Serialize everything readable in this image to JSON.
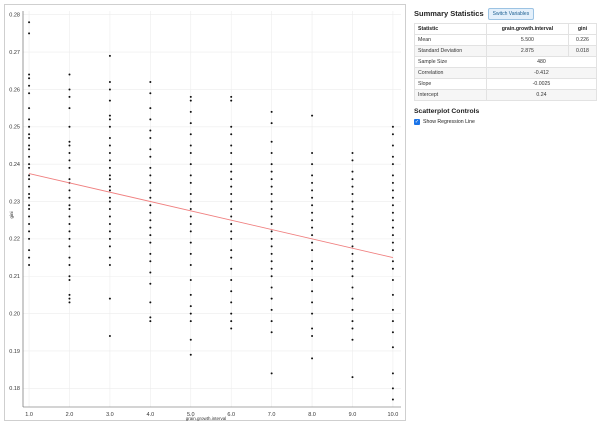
{
  "summary": {
    "title": "Summary Statistics",
    "switch_label": "Switch Variables",
    "columns": [
      "Statistic",
      "grain.growth.interval",
      "gini"
    ],
    "rows": [
      {
        "name": "Mean",
        "values": [
          "5.500",
          "0.226"
        ]
      },
      {
        "name": "Standard Deviation",
        "values": [
          "2.875",
          "0.018"
        ]
      },
      {
        "name": "Sample Size",
        "values": [
          "480"
        ]
      },
      {
        "name": "Correlation",
        "values": [
          "-0.412"
        ]
      },
      {
        "name": "Slope",
        "values": [
          "-0.0025"
        ]
      },
      {
        "name": "Intercept",
        "values": [
          "0.24"
        ]
      }
    ]
  },
  "controls": {
    "title": "Scatterplot Controls",
    "show_regression_label": "Show Regression Line",
    "show_regression_checked": true
  },
  "colors": {
    "points": "#111111",
    "regression": "#f08080",
    "checkbox": "#1a73e8"
  },
  "chart_data": {
    "type": "scatter",
    "xlabel": "grain.growth.interval",
    "ylabel": "gini",
    "x_ticks": [
      "1.0",
      "2.0",
      "3.0",
      "4.0",
      "5.0",
      "6.0",
      "7.0",
      "8.0",
      "9.0",
      "10.0"
    ],
    "y_ticks": [
      "0.18",
      "0.19",
      "0.20",
      "0.21",
      "0.22",
      "0.23",
      "0.24",
      "0.25",
      "0.26",
      "0.27",
      "0.28"
    ],
    "xlim": [
      0.85,
      10.2
    ],
    "ylim": [
      0.175,
      0.281
    ],
    "grid": true,
    "regression": {
      "intercept": 0.24,
      "slope": -0.0025
    },
    "points": [
      [
        1,
        0.278
      ],
      [
        1,
        0.275
      ],
      [
        1,
        0.264
      ],
      [
        1,
        0.263
      ],
      [
        1,
        0.261
      ],
      [
        1,
        0.259
      ],
      [
        1,
        0.255
      ],
      [
        1,
        0.252
      ],
      [
        1,
        0.25
      ],
      [
        1,
        0.248
      ],
      [
        1,
        0.247
      ],
      [
        1,
        0.245
      ],
      [
        1,
        0.244
      ],
      [
        1,
        0.242
      ],
      [
        1,
        0.24
      ],
      [
        1,
        0.239
      ],
      [
        1,
        0.237
      ],
      [
        1,
        0.236
      ],
      [
        1,
        0.234
      ],
      [
        1,
        0.232
      ],
      [
        1,
        0.231
      ],
      [
        1,
        0.229
      ],
      [
        1,
        0.228
      ],
      [
        1,
        0.226
      ],
      [
        1,
        0.224
      ],
      [
        1,
        0.222
      ],
      [
        1,
        0.22
      ],
      [
        1,
        0.217
      ],
      [
        1,
        0.215
      ],
      [
        1,
        0.213
      ],
      [
        2,
        0.264
      ],
      [
        2,
        0.26
      ],
      [
        2,
        0.258
      ],
      [
        2,
        0.255
      ],
      [
        2,
        0.25
      ],
      [
        2,
        0.246
      ],
      [
        2,
        0.245
      ],
      [
        2,
        0.243
      ],
      [
        2,
        0.241
      ],
      [
        2,
        0.239
      ],
      [
        2,
        0.236
      ],
      [
        2,
        0.235
      ],
      [
        2,
        0.233
      ],
      [
        2,
        0.231
      ],
      [
        2,
        0.229
      ],
      [
        2,
        0.228
      ],
      [
        2,
        0.226
      ],
      [
        2,
        0.224
      ],
      [
        2,
        0.222
      ],
      [
        2,
        0.22
      ],
      [
        2,
        0.218
      ],
      [
        2,
        0.215
      ],
      [
        2,
        0.213
      ],
      [
        2,
        0.21
      ],
      [
        2,
        0.209
      ],
      [
        2,
        0.205
      ],
      [
        2,
        0.204
      ],
      [
        2,
        0.203
      ],
      [
        3,
        0.269
      ],
      [
        3,
        0.262
      ],
      [
        3,
        0.26
      ],
      [
        3,
        0.257
      ],
      [
        3,
        0.253
      ],
      [
        3,
        0.252
      ],
      [
        3,
        0.25
      ],
      [
        3,
        0.247
      ],
      [
        3,
        0.245
      ],
      [
        3,
        0.243
      ],
      [
        3,
        0.241
      ],
      [
        3,
        0.239
      ],
      [
        3,
        0.237
      ],
      [
        3,
        0.236
      ],
      [
        3,
        0.234
      ],
      [
        3,
        0.233
      ],
      [
        3,
        0.231
      ],
      [
        3,
        0.23
      ],
      [
        3,
        0.228
      ],
      [
        3,
        0.226
      ],
      [
        3,
        0.224
      ],
      [
        3,
        0.222
      ],
      [
        3,
        0.22
      ],
      [
        3,
        0.218
      ],
      [
        3,
        0.215
      ],
      [
        3,
        0.213
      ],
      [
        3,
        0.204
      ],
      [
        3,
        0.194
      ],
      [
        4,
        0.262
      ],
      [
        4,
        0.259
      ],
      [
        4,
        0.255
      ],
      [
        4,
        0.252
      ],
      [
        4,
        0.249
      ],
      [
        4,
        0.247
      ],
      [
        4,
        0.244
      ],
      [
        4,
        0.242
      ],
      [
        4,
        0.239
      ],
      [
        4,
        0.237
      ],
      [
        4,
        0.235
      ],
      [
        4,
        0.233
      ],
      [
        4,
        0.231
      ],
      [
        4,
        0.229
      ],
      [
        4,
        0.227
      ],
      [
        4,
        0.225
      ],
      [
        4,
        0.223
      ],
      [
        4,
        0.221
      ],
      [
        4,
        0.219
      ],
      [
        4,
        0.216
      ],
      [
        4,
        0.214
      ],
      [
        4,
        0.211
      ],
      [
        4,
        0.208
      ],
      [
        4,
        0.203
      ],
      [
        4,
        0.199
      ],
      [
        4,
        0.198
      ],
      [
        5,
        0.258
      ],
      [
        5,
        0.257
      ],
      [
        5,
        0.254
      ],
      [
        5,
        0.251
      ],
      [
        5,
        0.248
      ],
      [
        5,
        0.245
      ],
      [
        5,
        0.243
      ],
      [
        5,
        0.24
      ],
      [
        5,
        0.237
      ],
      [
        5,
        0.235
      ],
      [
        5,
        0.232
      ],
      [
        5,
        0.23
      ],
      [
        5,
        0.228
      ],
      [
        5,
        0.226
      ],
      [
        5,
        0.224
      ],
      [
        5,
        0.222
      ],
      [
        5,
        0.219
      ],
      [
        5,
        0.216
      ],
      [
        5,
        0.213
      ],
      [
        5,
        0.209
      ],
      [
        5,
        0.205
      ],
      [
        5,
        0.202
      ],
      [
        5,
        0.2
      ],
      [
        5,
        0.198
      ],
      [
        5,
        0.193
      ],
      [
        5,
        0.189
      ],
      [
        6,
        0.258
      ],
      [
        6,
        0.257
      ],
      [
        6,
        0.25
      ],
      [
        6,
        0.248
      ],
      [
        6,
        0.245
      ],
      [
        6,
        0.243
      ],
      [
        6,
        0.24
      ],
      [
        6,
        0.238
      ],
      [
        6,
        0.236
      ],
      [
        6,
        0.234
      ],
      [
        6,
        0.232
      ],
      [
        6,
        0.23
      ],
      [
        6,
        0.228
      ],
      [
        6,
        0.226
      ],
      [
        6,
        0.224
      ],
      [
        6,
        0.222
      ],
      [
        6,
        0.22
      ],
      [
        6,
        0.217
      ],
      [
        6,
        0.215
      ],
      [
        6,
        0.212
      ],
      [
        6,
        0.209
      ],
      [
        6,
        0.206
      ],
      [
        6,
        0.203
      ],
      [
        6,
        0.2
      ],
      [
        6,
        0.198
      ],
      [
        6,
        0.196
      ],
      [
        7,
        0.254
      ],
      [
        7,
        0.251
      ],
      [
        7,
        0.246
      ],
      [
        7,
        0.243
      ],
      [
        7,
        0.24
      ],
      [
        7,
        0.238
      ],
      [
        7,
        0.236
      ],
      [
        7,
        0.234
      ],
      [
        7,
        0.232
      ],
      [
        7,
        0.23
      ],
      [
        7,
        0.228
      ],
      [
        7,
        0.226
      ],
      [
        7,
        0.224
      ],
      [
        7,
        0.222
      ],
      [
        7,
        0.22
      ],
      [
        7,
        0.218
      ],
      [
        7,
        0.216
      ],
      [
        7,
        0.214
      ],
      [
        7,
        0.212
      ],
      [
        7,
        0.21
      ],
      [
        7,
        0.207
      ],
      [
        7,
        0.204
      ],
      [
        7,
        0.201
      ],
      [
        7,
        0.198
      ],
      [
        7,
        0.195
      ],
      [
        7,
        0.184
      ],
      [
        8,
        0.253
      ],
      [
        8,
        0.243
      ],
      [
        8,
        0.24
      ],
      [
        8,
        0.237
      ],
      [
        8,
        0.235
      ],
      [
        8,
        0.233
      ],
      [
        8,
        0.231
      ],
      [
        8,
        0.229
      ],
      [
        8,
        0.227
      ],
      [
        8,
        0.225
      ],
      [
        8,
        0.223
      ],
      [
        8,
        0.221
      ],
      [
        8,
        0.219
      ],
      [
        8,
        0.217
      ],
      [
        8,
        0.214
      ],
      [
        8,
        0.212
      ],
      [
        8,
        0.209
      ],
      [
        8,
        0.206
      ],
      [
        8,
        0.203
      ],
      [
        8,
        0.2
      ],
      [
        8,
        0.196
      ],
      [
        8,
        0.194
      ],
      [
        8,
        0.188
      ],
      [
        9,
        0.243
      ],
      [
        9,
        0.241
      ],
      [
        9,
        0.238
      ],
      [
        9,
        0.236
      ],
      [
        9,
        0.234
      ],
      [
        9,
        0.232
      ],
      [
        9,
        0.23
      ],
      [
        9,
        0.228
      ],
      [
        9,
        0.226
      ],
      [
        9,
        0.224
      ],
      [
        9,
        0.222
      ],
      [
        9,
        0.22
      ],
      [
        9,
        0.218
      ],
      [
        9,
        0.216
      ],
      [
        9,
        0.214
      ],
      [
        9,
        0.212
      ],
      [
        9,
        0.21
      ],
      [
        9,
        0.207
      ],
      [
        9,
        0.204
      ],
      [
        9,
        0.201
      ],
      [
        9,
        0.198
      ],
      [
        9,
        0.196
      ],
      [
        9,
        0.193
      ],
      [
        9,
        0.183
      ],
      [
        10,
        0.25
      ],
      [
        10,
        0.248
      ],
      [
        10,
        0.245
      ],
      [
        10,
        0.242
      ],
      [
        10,
        0.24
      ],
      [
        10,
        0.237
      ],
      [
        10,
        0.235
      ],
      [
        10,
        0.233
      ],
      [
        10,
        0.231
      ],
      [
        10,
        0.229
      ],
      [
        10,
        0.227
      ],
      [
        10,
        0.225
      ],
      [
        10,
        0.223
      ],
      [
        10,
        0.221
      ],
      [
        10,
        0.219
      ],
      [
        10,
        0.217
      ],
      [
        10,
        0.214
      ],
      [
        10,
        0.212
      ],
      [
        10,
        0.209
      ],
      [
        10,
        0.205
      ],
      [
        10,
        0.201
      ],
      [
        10,
        0.198
      ],
      [
        10,
        0.195
      ],
      [
        10,
        0.191
      ],
      [
        10,
        0.184
      ],
      [
        10,
        0.18
      ],
      [
        10,
        0.177
      ]
    ]
  }
}
